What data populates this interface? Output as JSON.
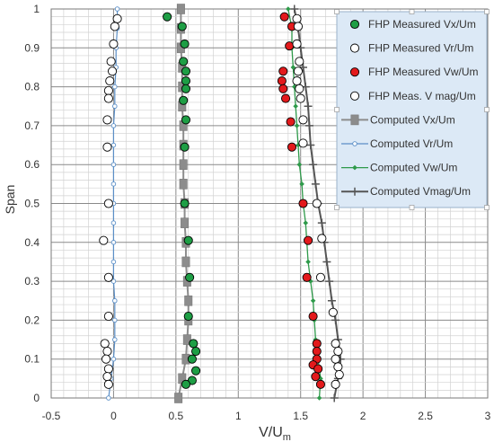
{
  "chart_data": {
    "type": "scatter",
    "xlabel": "V/U",
    "xlabel_subscript": "m",
    "ylabel": "Span",
    "xlim": [
      -0.5,
      3
    ],
    "ylim": [
      0,
      1
    ],
    "x_ticks": [
      "-0.5",
      "0",
      "0.5",
      "1",
      "1.5",
      "2",
      "2.5",
      "3"
    ],
    "y_ticks": [
      "0",
      "0.1",
      "0.2",
      "0.3",
      "0.4",
      "0.5",
      "0.6",
      "0.7",
      "0.8",
      "0.9",
      "1"
    ],
    "grid": "major and minor",
    "legend_position": "top-right",
    "series": [
      {
        "name": "FHP Measured Vx/Um",
        "kind": "marker",
        "color": "#1e9e45",
        "points": [
          [
            0.43,
            0.98
          ],
          [
            0.55,
            0.955
          ],
          [
            0.57,
            0.91
          ],
          [
            0.56,
            0.865
          ],
          [
            0.58,
            0.84
          ],
          [
            0.58,
            0.815
          ],
          [
            0.58,
            0.795
          ],
          [
            0.56,
            0.765
          ],
          [
            0.58,
            0.715
          ],
          [
            0.57,
            0.645
          ],
          [
            0.57,
            0.5
          ],
          [
            0.6,
            0.405
          ],
          [
            0.61,
            0.31
          ],
          [
            0.6,
            0.21
          ],
          [
            0.64,
            0.14
          ],
          [
            0.66,
            0.12
          ],
          [
            0.63,
            0.1
          ],
          [
            0.66,
            0.07
          ],
          [
            0.63,
            0.045
          ],
          [
            0.58,
            0.035
          ]
        ]
      },
      {
        "name": "FHP Measured Vr/Um",
        "kind": "marker",
        "color": "#ffffff",
        "points": [
          [
            0.03,
            0.975
          ],
          [
            0.01,
            0.955
          ],
          [
            0.0,
            0.91
          ],
          [
            -0.02,
            0.865
          ],
          [
            -0.01,
            0.84
          ],
          [
            -0.03,
            0.815
          ],
          [
            -0.04,
            0.79
          ],
          [
            -0.04,
            0.77
          ],
          [
            -0.05,
            0.715
          ],
          [
            -0.05,
            0.645
          ],
          [
            -0.04,
            0.5
          ],
          [
            -0.08,
            0.405
          ],
          [
            -0.04,
            0.31
          ],
          [
            -0.04,
            0.21
          ],
          [
            -0.07,
            0.14
          ],
          [
            -0.05,
            0.12
          ],
          [
            -0.06,
            0.1
          ],
          [
            -0.04,
            0.075
          ],
          [
            -0.05,
            0.055
          ],
          [
            -0.04,
            0.035
          ]
        ]
      },
      {
        "name": "FHP Measured Vw/Um",
        "kind": "marker",
        "color": "#e31a1c",
        "points": [
          [
            1.37,
            0.98
          ],
          [
            1.43,
            0.955
          ],
          [
            1.41,
            0.905
          ],
          [
            1.36,
            0.84
          ],
          [
            1.35,
            0.815
          ],
          [
            1.36,
            0.795
          ],
          [
            1.38,
            0.77
          ],
          [
            1.42,
            0.71
          ],
          [
            1.43,
            0.645
          ],
          [
            1.52,
            0.5
          ],
          [
            1.56,
            0.405
          ],
          [
            1.55,
            0.31
          ],
          [
            1.6,
            0.21
          ],
          [
            1.63,
            0.14
          ],
          [
            1.63,
            0.12
          ],
          [
            1.63,
            0.1
          ],
          [
            1.6,
            0.085
          ],
          [
            1.64,
            0.075
          ],
          [
            1.62,
            0.055
          ],
          [
            1.66,
            0.035
          ]
        ]
      },
      {
        "name": "FHP Meas. V mag/Um",
        "kind": "marker",
        "color": "#ffffff",
        "points": [
          [
            1.47,
            0.975
          ],
          [
            1.48,
            0.955
          ],
          [
            1.47,
            0.91
          ],
          [
            1.49,
            0.865
          ],
          [
            1.48,
            0.84
          ],
          [
            1.47,
            0.815
          ],
          [
            1.49,
            0.795
          ],
          [
            1.5,
            0.77
          ],
          [
            1.52,
            0.715
          ],
          [
            1.52,
            0.655
          ],
          [
            1.63,
            0.5
          ],
          [
            1.67,
            0.41
          ],
          [
            1.66,
            0.31
          ],
          [
            1.76,
            0.22
          ],
          [
            1.78,
            0.14
          ],
          [
            1.8,
            0.12
          ],
          [
            1.78,
            0.1
          ],
          [
            1.8,
            0.08
          ],
          [
            1.81,
            0.06
          ],
          [
            1.78,
            0.035
          ]
        ]
      },
      {
        "name": "Computed Vx/Um",
        "kind": "line-square",
        "color": "#8c8c8c",
        "points": [
          [
            0.52,
            0.0
          ],
          [
            0.55,
            0.05
          ],
          [
            0.58,
            0.1
          ],
          [
            0.59,
            0.15
          ],
          [
            0.6,
            0.2
          ],
          [
            0.6,
            0.25
          ],
          [
            0.59,
            0.3
          ],
          [
            0.58,
            0.35
          ],
          [
            0.58,
            0.4
          ],
          [
            0.57,
            0.45
          ],
          [
            0.57,
            0.5
          ],
          [
            0.56,
            0.55
          ],
          [
            0.56,
            0.6
          ],
          [
            0.56,
            0.65
          ],
          [
            0.56,
            0.7
          ],
          [
            0.55,
            0.75
          ],
          [
            0.55,
            0.8
          ],
          [
            0.55,
            0.85
          ],
          [
            0.54,
            0.9
          ],
          [
            0.54,
            0.95
          ],
          [
            0.54,
            1.0
          ]
        ]
      },
      {
        "name": "Computed Vr/Um",
        "kind": "line-circle",
        "color": "#5b8fc7",
        "points": [
          [
            -0.04,
            0.0
          ],
          [
            -0.02,
            0.05
          ],
          [
            0.0,
            0.1
          ],
          [
            0.01,
            0.15
          ],
          [
            0.01,
            0.2
          ],
          [
            0.01,
            0.25
          ],
          [
            0.0,
            0.3
          ],
          [
            0.0,
            0.35
          ],
          [
            0.0,
            0.4
          ],
          [
            0.0,
            0.45
          ],
          [
            0.0,
            0.5
          ],
          [
            0.0,
            0.55
          ],
          [
            0.0,
            0.6
          ],
          [
            0.0,
            0.65
          ],
          [
            0.0,
            0.7
          ],
          [
            0.01,
            0.75
          ],
          [
            0.01,
            0.8
          ],
          [
            0.02,
            0.85
          ],
          [
            0.02,
            0.9
          ],
          [
            0.03,
            0.95
          ],
          [
            0.03,
            1.0
          ]
        ]
      },
      {
        "name": "Computed Vw/Um",
        "kind": "line-diamond",
        "color": "#2e9a4a",
        "points": [
          [
            1.65,
            0.0
          ],
          [
            1.66,
            0.05
          ],
          [
            1.64,
            0.1
          ],
          [
            1.62,
            0.15
          ],
          [
            1.61,
            0.2
          ],
          [
            1.6,
            0.25
          ],
          [
            1.58,
            0.3
          ],
          [
            1.56,
            0.35
          ],
          [
            1.55,
            0.4
          ],
          [
            1.54,
            0.45
          ],
          [
            1.52,
            0.5
          ],
          [
            1.51,
            0.55
          ],
          [
            1.49,
            0.6
          ],
          [
            1.48,
            0.65
          ],
          [
            1.47,
            0.7
          ],
          [
            1.46,
            0.75
          ],
          [
            1.45,
            0.8
          ],
          [
            1.44,
            0.85
          ],
          [
            1.43,
            0.9
          ],
          [
            1.43,
            0.95
          ],
          [
            1.4,
            1.0
          ]
        ]
      },
      {
        "name": "Computed  Vmag/Um",
        "kind": "line-plus",
        "color": "#555555",
        "points": [
          [
            1.77,
            0.0
          ],
          [
            1.8,
            0.05
          ],
          [
            1.82,
            0.1
          ],
          [
            1.8,
            0.15
          ],
          [
            1.78,
            0.2
          ],
          [
            1.75,
            0.25
          ],
          [
            1.73,
            0.3
          ],
          [
            1.71,
            0.35
          ],
          [
            1.69,
            0.4
          ],
          [
            1.67,
            0.45
          ],
          [
            1.64,
            0.5
          ],
          [
            1.62,
            0.55
          ],
          [
            1.6,
            0.6
          ],
          [
            1.58,
            0.65
          ],
          [
            1.57,
            0.7
          ],
          [
            1.56,
            0.75
          ],
          [
            1.54,
            0.8
          ],
          [
            1.52,
            0.85
          ],
          [
            1.5,
            0.9
          ],
          [
            1.48,
            0.95
          ],
          [
            1.45,
            1.0
          ]
        ]
      }
    ]
  }
}
